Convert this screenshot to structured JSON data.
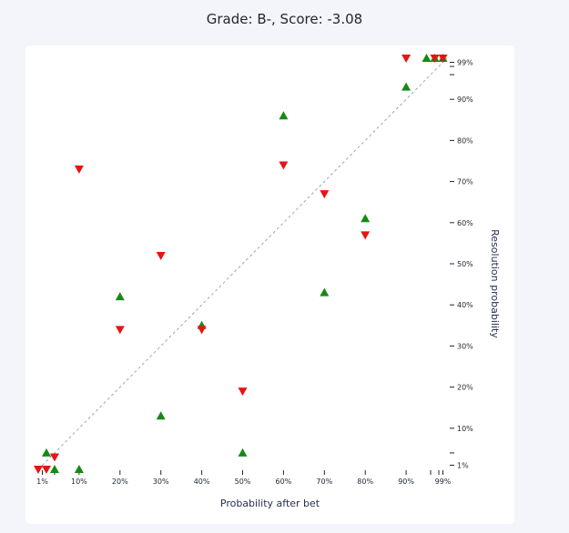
{
  "title": "Grade: B-, Score: -3.08",
  "chart_data": {
    "type": "scatter",
    "xlabel": "Probability after bet",
    "ylabel": "Resolution probability",
    "x_ticks": [
      "1%",
      "10%",
      "20%",
      "30%",
      "40%",
      "50%",
      "60%",
      "70%",
      "80%",
      "90%",
      "99%"
    ],
    "y_ticks": [
      "1%",
      "10%",
      "20%",
      "30%",
      "40%",
      "50%",
      "60%",
      "70%",
      "80%",
      "90%",
      "99%"
    ],
    "xlim": [
      0,
      100
    ],
    "ylim": [
      0,
      100
    ],
    "diagonal_reference": true,
    "colors": {
      "up": "#148a14",
      "down": "#e61414",
      "diagonal": "#9ea4b8"
    },
    "series": [
      {
        "marker": "up-triangle",
        "points": [
          {
            "x": 2,
            "y": 4
          },
          {
            "x": 4,
            "y": 0
          },
          {
            "x": 10,
            "y": 0
          },
          {
            "x": 20,
            "y": 42
          },
          {
            "x": 30,
            "y": 13
          },
          {
            "x": 40,
            "y": 35
          },
          {
            "x": 50,
            "y": 4
          },
          {
            "x": 60,
            "y": 86
          },
          {
            "x": 70,
            "y": 43
          },
          {
            "x": 80,
            "y": 61
          },
          {
            "x": 90,
            "y": 93
          },
          {
            "x": 95,
            "y": 100
          },
          {
            "x": 97,
            "y": 100
          },
          {
            "x": 99,
            "y": 100
          }
        ]
      },
      {
        "marker": "down-triangle",
        "points": [
          {
            "x": 0,
            "y": 0
          },
          {
            "x": 2,
            "y": 0
          },
          {
            "x": 4,
            "y": 3
          },
          {
            "x": 10,
            "y": 73
          },
          {
            "x": 20,
            "y": 34
          },
          {
            "x": 30,
            "y": 52
          },
          {
            "x": 40,
            "y": 34
          },
          {
            "x": 50,
            "y": 19
          },
          {
            "x": 60,
            "y": 74
          },
          {
            "x": 70,
            "y": 67
          },
          {
            "x": 80,
            "y": 57
          },
          {
            "x": 90,
            "y": 100
          },
          {
            "x": 97,
            "y": 100
          },
          {
            "x": 99,
            "y": 100
          }
        ]
      }
    ]
  }
}
